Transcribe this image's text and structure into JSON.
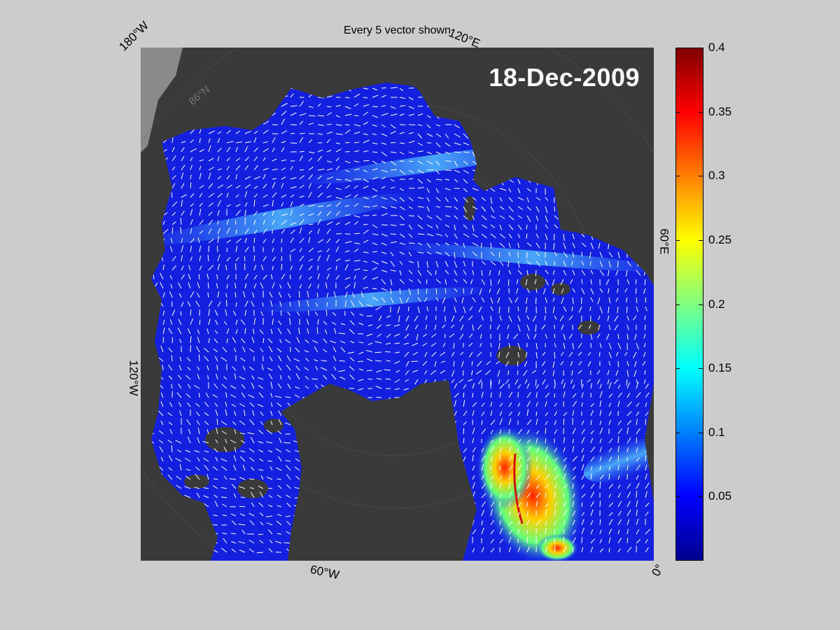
{
  "title": "Every 5 vector shown",
  "date_label": "18-Dec-2009",
  "map_labels": {
    "lon_180w": "180°W",
    "lon_120e": "120°E",
    "lon_60e": "60°E",
    "lon_120w": "120°W",
    "lon_60w": "60°W",
    "lon_0": "0°",
    "lat_86n": "86°N"
  },
  "colorbar": {
    "colormap": "jet",
    "min": 0,
    "max": 0.4,
    "ticks": [
      "0.4",
      "0.35",
      "0.3",
      "0.25",
      "0.2",
      "0.15",
      "0.1",
      "0.05"
    ],
    "tick_values": [
      0.4,
      0.35,
      0.3,
      0.25,
      0.2,
      0.15,
      0.1,
      0.05
    ]
  },
  "colors": {
    "land": "#3a3a3a",
    "background": "#cccccc",
    "ocean_low": "#1420e0",
    "vectors": "#ffffff"
  }
}
